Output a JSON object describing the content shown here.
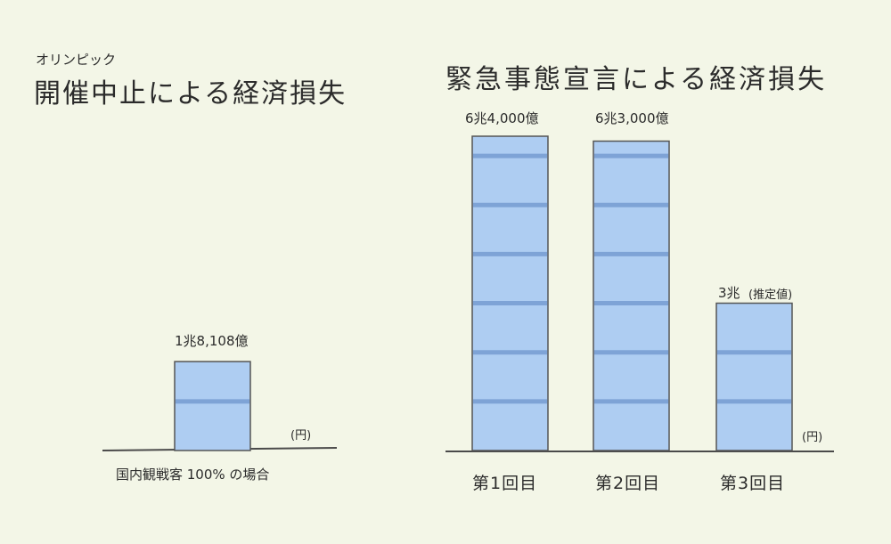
{
  "chart_data": [
    {
      "type": "bar",
      "supertitle": "オリンピック",
      "title": "開催中止による経済損失",
      "categories": [
        "国内観戦客 100% の場合"
      ],
      "values": [
        18108
      ],
      "value_labels": [
        "1兆8,108億"
      ],
      "unit_label": "(円)",
      "ylim": [
        0,
        65000
      ]
    },
    {
      "type": "bar",
      "title": "緊急事態宣言による経済損失",
      "categories": [
        "第1回目",
        "第2回目",
        "第3回目"
      ],
      "values": [
        64000,
        63000,
        30000
      ],
      "value_labels": [
        "6兆4,000億",
        "6兆3,000億",
        "3兆"
      ],
      "value_notes": [
        "",
        "",
        "(推定値)"
      ],
      "unit_label": "(円)",
      "ylim": [
        0,
        65000
      ]
    }
  ],
  "colors": {
    "bar_fill": "#aecdf2",
    "bar_stripe": "#7ea3d6",
    "bar_outline": "#555555",
    "axis": "#4a4a4a",
    "background": "#f3f6e7"
  }
}
